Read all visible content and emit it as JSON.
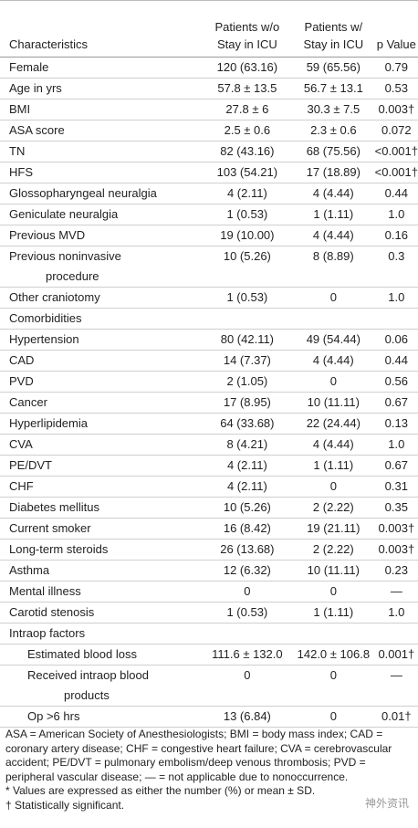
{
  "table": {
    "header": [
      [
        "Characteristics"
      ],
      [
        "Patients w/o",
        "Stay in ICU"
      ],
      [
        "Patients w/",
        "Stay in ICU"
      ],
      [
        "p Value"
      ]
    ],
    "rows": [
      [
        "Female",
        "120 (63.16)",
        "59 (65.56)",
        "0.79"
      ],
      [
        "Age in yrs",
        "57.8 ± 13.5",
        "56.7 ± 13.1",
        "0.53"
      ],
      [
        "BMI",
        "27.8 ± 6",
        "30.3 ± 7.5",
        "0.003†"
      ],
      [
        "ASA score",
        "2.5 ± 0.6",
        "2.3 ± 0.6",
        "0.072"
      ],
      [
        "TN",
        "82 (43.16)",
        "68 (75.56)",
        "<0.001†"
      ],
      [
        "HFS",
        "103 (54.21)",
        "17 (18.89)",
        "<0.001†"
      ],
      [
        "Glossopharyngeal neuralgia",
        "4 (2.11)",
        "4 (4.44)",
        "0.44"
      ],
      [
        "Geniculate neuralgia",
        "1 (0.53)",
        "1 (1.11)",
        "1.0"
      ],
      [
        "Previous MVD",
        "19 (10.00)",
        "4 (4.44)",
        "0.16"
      ],
      [
        [
          "Previous noninvasive",
          "procedure"
        ],
        "10 (5.26)",
        "8 (8.89)",
        "0.3"
      ],
      [
        "Other craniotomy",
        "1 (0.53)",
        "0",
        "1.0"
      ],
      [
        "Comorbidities"
      ],
      [
        "Hypertension",
        "80 (42.11)",
        "49 (54.44)",
        "0.06"
      ],
      [
        "CAD",
        "14 (7.37)",
        "4 (4.44)",
        "0.44"
      ],
      [
        "PVD",
        "2 (1.05)",
        "0",
        "0.56"
      ],
      [
        "Cancer",
        "17 (8.95)",
        "10 (11.11)",
        "0.67"
      ],
      [
        "Hyperlipidemia",
        "64 (33.68)",
        "22 (24.44)",
        "0.13"
      ],
      [
        "CVA",
        "8 (4.21)",
        "4 (4.44)",
        "1.0"
      ],
      [
        "PE/DVT",
        "4 (2.11)",
        "1 (1.11)",
        "0.67"
      ],
      [
        "CHF",
        "4 (2.11)",
        "0",
        "0.31"
      ],
      [
        "Diabetes mellitus",
        "10 (5.26)",
        "2 (2.22)",
        "0.35"
      ],
      [
        "Current smoker",
        "16 (8.42)",
        "19 (21.11)",
        "0.003†"
      ],
      [
        "Long-term steroids",
        "26 (13.68)",
        "2 (2.22)",
        "0.003†"
      ],
      [
        "Asthma",
        "12 (6.32)",
        "10 (11.11)",
        "0.23"
      ],
      [
        "Mental illness",
        "0",
        "0",
        "—"
      ],
      [
        "Carotid stenosis",
        "1 (0.53)",
        "1 (1.11)",
        "1.0"
      ]
    ],
    "intraop": {
      "label": "Intraop factors",
      "rows": [
        [
          "Estimated blood loss",
          "111.6 ± 132.0",
          "142.0 ± 106.8",
          "0.001†"
        ],
        [
          [
            "Received intraop blood",
            "products"
          ],
          "0",
          "0",
          "—"
        ],
        [
          "Op >6 hrs",
          "13 (6.84)",
          "0",
          "0.01†"
        ]
      ]
    }
  },
  "notes": [
    "ASA = American Society of Anesthesiologists; BMI = body mass index; CAD = coronary artery disease; CHF = congestive heart failure; CVA = cerebrovascular accident; PE/DVT = pulmonary embolism/deep venous thrombosis; PVD = peripheral vascular disease; — = not applicable due to nonoccurrence.",
    "*  Values are expressed as either the number (%) or mean ± SD.",
    "†  Statistically significant."
  ],
  "watermark": "神外资讯"
}
